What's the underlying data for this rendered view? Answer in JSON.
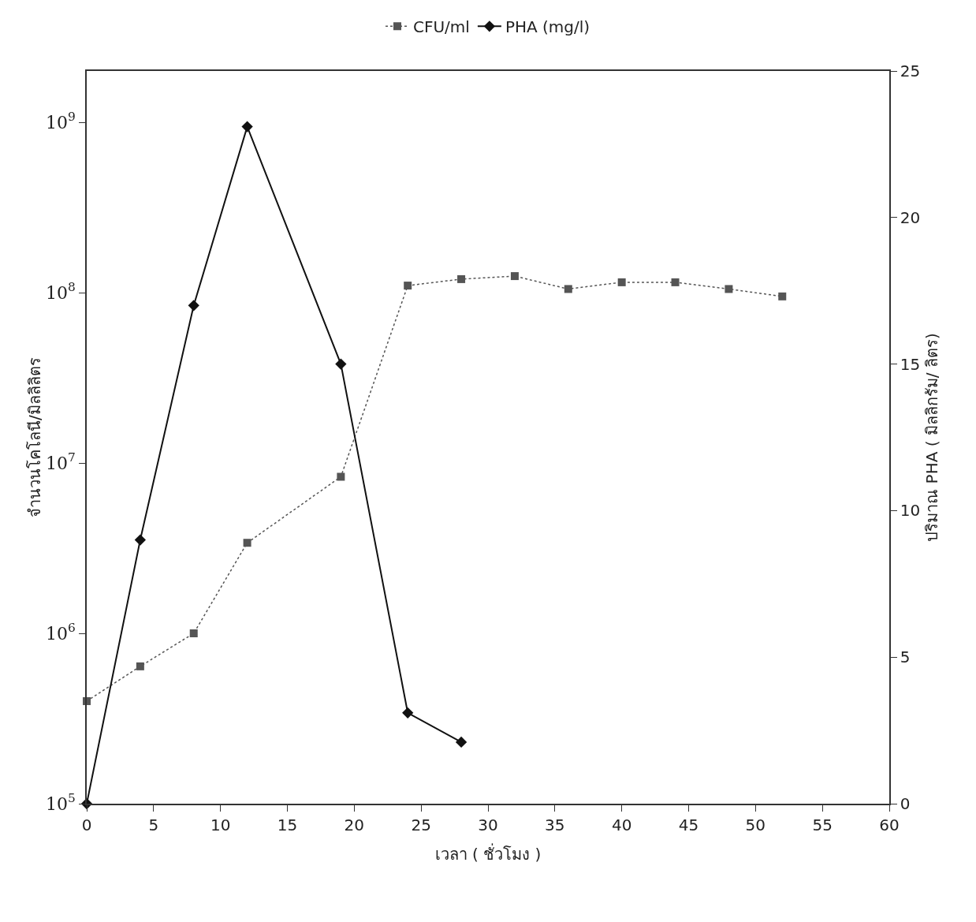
{
  "chart_data": {
    "type": "line",
    "xlabel": "เวลา ( ชั่วโมง )",
    "ylabel": "จำนวนโคโลนี/มิลลิลิตร",
    "y2label": "ปริมาณ PHA ( มิลลิกรัม/ ลิตร)",
    "log": "y",
    "grid": false,
    "legend": "top",
    "xlim": [
      0,
      60
    ],
    "xticks": [
      0,
      5,
      10,
      15,
      20,
      25,
      30,
      35,
      40,
      45,
      50,
      55,
      60
    ],
    "ylim": [
      100000,
      2000000000
    ],
    "yticks": [
      {
        "value": 100000,
        "label": "10$^{5}$"
      },
      {
        "value": 1000000,
        "label": "10$^{6}$"
      },
      {
        "value": 10000000,
        "label": "10$^{7}$"
      },
      {
        "value": 100000000,
        "label": "10$^{8}$"
      },
      {
        "value": 1000000000,
        "label": "10$^{9}$"
      }
    ],
    "y2lim": [
      0,
      25
    ],
    "y2ticks": [
      0,
      5,
      10,
      15,
      20,
      25
    ],
    "series": [
      {
        "name": "CFU/ml",
        "color": "#555555",
        "marker": "square",
        "line_style": "dotted",
        "x": [
          0,
          4,
          8,
          12,
          19,
          24,
          28,
          32,
          36,
          40,
          44,
          48,
          52
        ],
        "values": [
          400000,
          640000,
          1000000,
          3400000,
          8300000,
          110000000,
          120000000,
          125000000,
          105000000,
          115000000,
          115000000,
          105000000,
          95000000
        ]
      },
      {
        "name": "PHA (mg/l)",
        "color": "#111111",
        "marker": "diamond",
        "line_style": "solid",
        "axis": "y2",
        "x": [
          0,
          4,
          8,
          12,
          19,
          24,
          28
        ],
        "values": [
          0,
          9.0,
          17.0,
          23.1,
          15.0,
          3.1,
          2.1
        ]
      }
    ]
  }
}
